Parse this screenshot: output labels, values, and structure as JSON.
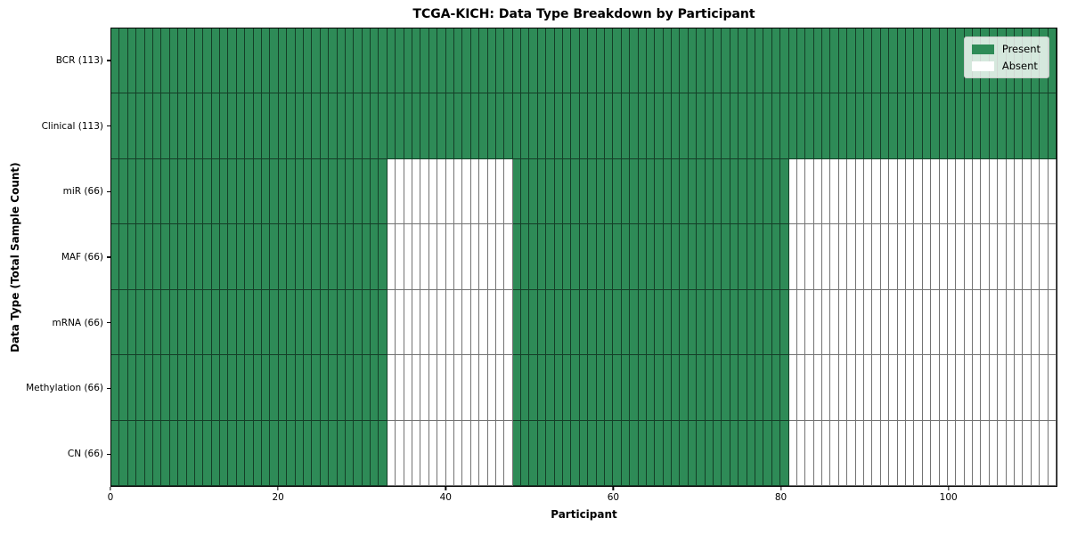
{
  "chart_data": {
    "type": "heatmap",
    "title": "TCGA-KICH: Data Type Breakdown by Participant",
    "xlabel": "Participant",
    "ylabel": "Data Type (Total Sample Count)",
    "participants": 113,
    "xlim": [
      0,
      113
    ],
    "x_ticks": [
      0,
      20,
      40,
      60,
      80,
      100
    ],
    "grid": "cell-borders",
    "rows": [
      {
        "label": "BCR (113)",
        "data_type": "BCR",
        "sample_count": 113,
        "present_ranges": [
          [
            0,
            113
          ]
        ]
      },
      {
        "label": "Clinical (113)",
        "data_type": "Clinical",
        "sample_count": 113,
        "present_ranges": [
          [
            0,
            113
          ]
        ]
      },
      {
        "label": "miR (66)",
        "data_type": "miR",
        "sample_count": 66,
        "present_ranges": [
          [
            0,
            33
          ],
          [
            48,
            81
          ]
        ]
      },
      {
        "label": "MAF (66)",
        "data_type": "MAF",
        "sample_count": 66,
        "present_ranges": [
          [
            0,
            33
          ],
          [
            48,
            81
          ]
        ]
      },
      {
        "label": "mRNA (66)",
        "data_type": "mRNA",
        "sample_count": 66,
        "present_ranges": [
          [
            0,
            33
          ],
          [
            48,
            81
          ]
        ]
      },
      {
        "label": "Methylation (66)",
        "data_type": "Methylation",
        "sample_count": 66,
        "present_ranges": [
          [
            0,
            33
          ],
          [
            48,
            81
          ]
        ]
      },
      {
        "label": "CN (66)",
        "data_type": "CN",
        "sample_count": 66,
        "present_ranges": [
          [
            0,
            33
          ],
          [
            48,
            81
          ]
        ]
      }
    ],
    "legend": {
      "position": "upper right",
      "entries": [
        {
          "label": "Present",
          "color": "#2e8b57"
        },
        {
          "label": "Absent",
          "color": "#ffffff"
        }
      ]
    },
    "colors": {
      "present": "#2e8b57",
      "absent": "#ffffff"
    }
  }
}
